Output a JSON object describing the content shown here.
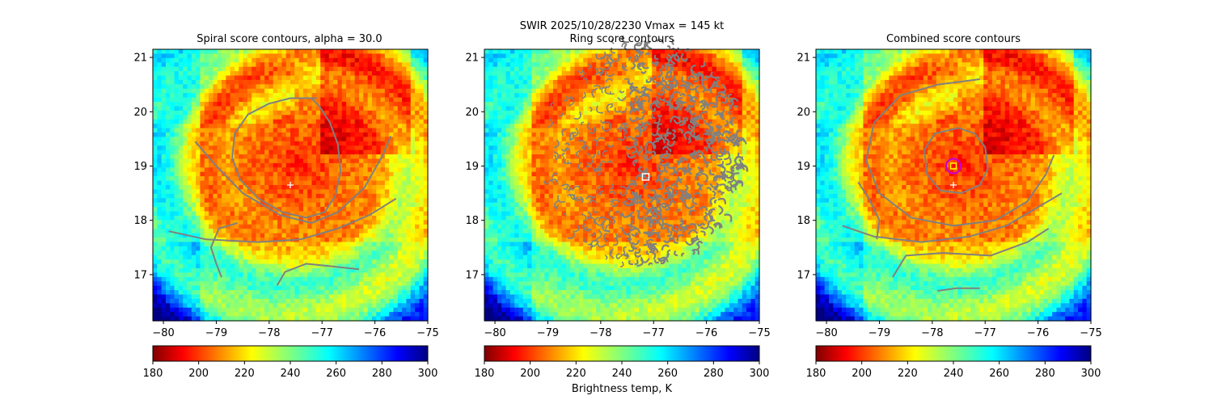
{
  "figure": {
    "suptitle_line1": "SWIR  2025/10/28/2230    Vmax = 145 kt",
    "colorbar_label": "Brightness temp, K"
  },
  "colors": {
    "contour": "#808080",
    "center_marker": "#ffffff",
    "best_circle": "#cc00cc",
    "best_square": "#ffff00",
    "ring_square": "#ffffff"
  },
  "colormap": "jet_r",
  "chart_data": [
    {
      "type": "heatmap",
      "title": "Spiral score contours, alpha = 30.0",
      "xlim": [
        -80.2,
        -75.0
      ],
      "ylim": [
        16.15,
        21.15
      ],
      "xticks": [
        -80,
        -79,
        -78,
        -77,
        -76,
        -75
      ],
      "yticks": [
        17,
        18,
        19,
        20,
        21
      ],
      "value_range": [
        180,
        300
      ],
      "colorbar_ticks": [
        180,
        200,
        220,
        240,
        260,
        280,
        300
      ],
      "center_marker": {
        "lon": -77.6,
        "lat": 18.65,
        "symbol": "plus"
      },
      "contours": [
        [
          [
            -77.1,
            20.25
          ],
          [
            -77.6,
            20.25
          ],
          [
            -78.0,
            20.15
          ],
          [
            -78.4,
            19.95
          ],
          [
            -78.65,
            19.6
          ],
          [
            -78.7,
            19.15
          ],
          [
            -78.55,
            18.75
          ],
          [
            -78.2,
            18.4
          ],
          [
            -77.75,
            18.15
          ],
          [
            -77.3,
            18.05
          ],
          [
            -76.95,
            18.15
          ],
          [
            -76.75,
            18.45
          ],
          [
            -76.65,
            18.9
          ],
          [
            -76.7,
            19.4
          ],
          [
            -76.85,
            19.8
          ],
          [
            -77.05,
            20.1
          ],
          [
            -77.2,
            20.25
          ]
        ],
        [
          [
            -79.4,
            19.45
          ],
          [
            -79.0,
            19.0
          ],
          [
            -78.5,
            18.5
          ],
          [
            -77.8,
            18.1
          ],
          [
            -77.2,
            17.95
          ],
          [
            -76.7,
            18.15
          ],
          [
            -76.2,
            18.6
          ],
          [
            -75.85,
            19.2
          ],
          [
            -75.7,
            19.55
          ]
        ],
        [
          [
            -79.9,
            17.8
          ],
          [
            -79.2,
            17.65
          ],
          [
            -78.2,
            17.6
          ],
          [
            -77.4,
            17.65
          ],
          [
            -76.7,
            17.85
          ],
          [
            -76.1,
            18.1
          ],
          [
            -75.6,
            18.4
          ]
        ],
        [
          [
            -78.9,
            16.95
          ],
          [
            -79.0,
            17.2
          ],
          [
            -79.1,
            17.5
          ],
          [
            -78.95,
            17.85
          ],
          [
            -78.6,
            17.95
          ]
        ],
        [
          [
            -77.85,
            16.8
          ],
          [
            -77.7,
            17.05
          ],
          [
            -77.3,
            17.2
          ],
          [
            -76.8,
            17.15
          ],
          [
            -76.3,
            17.1
          ]
        ]
      ]
    },
    {
      "type": "heatmap",
      "title": "Ring score contours",
      "xlim": [
        -80.2,
        -75.0
      ],
      "ylim": [
        16.15,
        21.15
      ],
      "xticks": [
        -80,
        -79,
        -78,
        -77,
        -76,
        -75
      ],
      "yticks": [
        17,
        18,
        19,
        20,
        21
      ],
      "value_range": [
        180,
        300
      ],
      "colorbar_ticks": [
        180,
        200,
        220,
        240,
        260,
        280,
        300
      ],
      "ring_region": {
        "center_lon": -77.2,
        "center_lat": 19.25,
        "radius_lon": 1.9,
        "radius_lat": 2.1
      },
      "best_marker": {
        "lon": -77.15,
        "lat": 18.8,
        "symbol": "square"
      }
    },
    {
      "type": "heatmap",
      "title": "Combined score contours",
      "xlim": [
        -80.2,
        -75.0
      ],
      "ylim": [
        16.15,
        21.15
      ],
      "xticks": [
        -80,
        -79,
        -78,
        -77,
        -76,
        -75
      ],
      "yticks": [
        17,
        18,
        19,
        20,
        21
      ],
      "value_range": [
        180,
        300
      ],
      "colorbar_ticks": [
        180,
        200,
        220,
        240,
        260,
        280,
        300
      ],
      "center_marker": {
        "lon": -77.6,
        "lat": 18.65,
        "symbol": "plus"
      },
      "best_marker": {
        "lon": -77.6,
        "lat": 19.0,
        "symbol": "circle-square"
      },
      "contours": [
        [
          [
            -77.5,
            19.7
          ],
          [
            -77.95,
            19.6
          ],
          [
            -78.15,
            19.3
          ],
          [
            -78.1,
            18.85
          ],
          [
            -77.85,
            18.55
          ],
          [
            -77.45,
            18.5
          ],
          [
            -77.1,
            18.65
          ],
          [
            -76.95,
            18.95
          ],
          [
            -77.0,
            19.35
          ],
          [
            -77.2,
            19.6
          ],
          [
            -77.5,
            19.7
          ]
        ],
        [
          [
            -77.1,
            20.6
          ],
          [
            -77.9,
            20.5
          ],
          [
            -78.6,
            20.3
          ],
          [
            -79.1,
            19.8
          ],
          [
            -79.25,
            19.1
          ],
          [
            -79.0,
            18.5
          ],
          [
            -78.4,
            18.05
          ],
          [
            -77.6,
            17.9
          ],
          [
            -76.8,
            18.0
          ],
          [
            -76.2,
            18.35
          ],
          [
            -75.85,
            18.85
          ],
          [
            -75.7,
            19.2
          ]
        ],
        [
          [
            -79.7,
            17.9
          ],
          [
            -79.1,
            17.7
          ],
          [
            -78.2,
            17.6
          ],
          [
            -77.3,
            17.7
          ],
          [
            -76.6,
            17.9
          ],
          [
            -75.9,
            18.3
          ],
          [
            -75.55,
            18.5
          ]
        ],
        [
          [
            -79.4,
            18.7
          ],
          [
            -79.2,
            18.4
          ],
          [
            -79.0,
            18.0
          ],
          [
            -79.05,
            17.65
          ]
        ],
        [
          [
            -78.75,
            16.95
          ],
          [
            -78.5,
            17.35
          ],
          [
            -77.8,
            17.4
          ],
          [
            -76.9,
            17.35
          ],
          [
            -76.2,
            17.6
          ],
          [
            -75.8,
            17.85
          ]
        ],
        [
          [
            -77.9,
            16.7
          ],
          [
            -77.55,
            16.75
          ],
          [
            -77.1,
            16.75
          ]
        ]
      ]
    }
  ]
}
